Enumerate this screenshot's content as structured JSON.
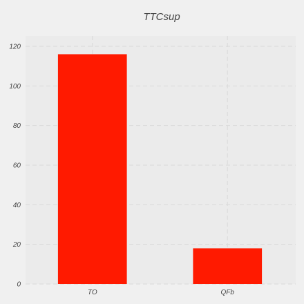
{
  "chart_data": {
    "type": "bar",
    "title": "TTCsup",
    "xlabel": "",
    "ylabel": "",
    "categories": [
      "TO",
      "QFb"
    ],
    "values": [
      116,
      18
    ],
    "ylim": [
      0,
      120
    ],
    "yticks": [
      0,
      20,
      40,
      60,
      80,
      100,
      120
    ],
    "grid": true,
    "legend": "none",
    "colors": {
      "bar": "#ff1a00",
      "plot_background": "#ebebeb",
      "figure_background": "#f0f0f0",
      "grid": "#d9d9d9",
      "text": "#444444"
    }
  }
}
